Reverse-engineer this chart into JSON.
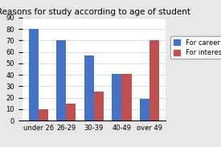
{
  "title": "Reasons for study according to age of student",
  "categories": [
    "under 26",
    "26-29",
    "30-39",
    "40-49",
    "over 49"
  ],
  "series": [
    {
      "label": "For career",
      "color": "#4472C4",
      "values": [
        80,
        70,
        57,
        41,
        19
      ]
    },
    {
      "label": "For interest",
      "color": "#C0504D",
      "values": [
        10,
        15,
        25,
        41,
        70
      ]
    }
  ],
  "ylim": [
    0,
    90
  ],
  "yticks": [
    0,
    10,
    20,
    30,
    40,
    50,
    60,
    70,
    80,
    90
  ],
  "fig_background": "#E8E8E8",
  "plot_background": "#FFFFFF",
  "title_fontsize": 7.5,
  "tick_fontsize": 6,
  "legend_fontsize": 6,
  "bar_width": 0.35
}
